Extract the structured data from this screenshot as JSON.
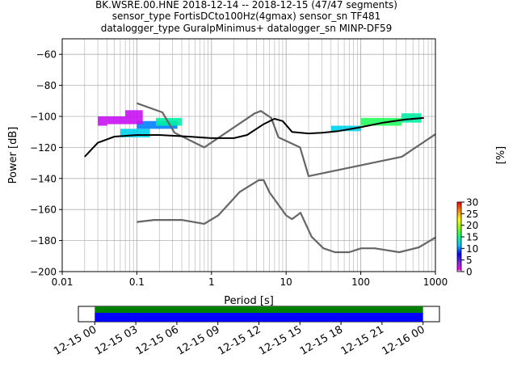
{
  "chart_data": [
    {
      "type": "heatmap",
      "title_lines": [
        "BK.WSRE.00.HNE   2018-12-14 -- 2018-12-15  (47/47 segments)",
        "sensor_type FortisDCto100Hz(4gmax) sensor_sn TF481",
        "datalogger_type GuralpMinimus+ datalogger_sn MINP-DF59"
      ],
      "xlabel": "Period [s]",
      "ylabel": "Power [dB]",
      "xscale": "log",
      "xlim": [
        0.01,
        1000
      ],
      "ylim": [
        -200,
        -50
      ],
      "x_tick_labels": [
        "0.01",
        "0.1",
        "1",
        "10",
        "100",
        "1000"
      ],
      "x_tick_values": [
        0.01,
        0.1,
        1,
        10,
        100,
        1000
      ],
      "y_tick_labels": [
        "−200",
        "−180",
        "−160",
        "−140",
        "−120",
        "−100",
        "−80",
        "−60"
      ],
      "y_tick_values": [
        -200,
        -180,
        -160,
        -140,
        -120,
        -100,
        -80,
        -60
      ],
      "grid": true,
      "colorbar": {
        "label": "[%]",
        "range": [
          0,
          30
        ],
        "tick_values": [
          0,
          5,
          10,
          15,
          20,
          25,
          30
        ],
        "tick_labels": [
          "0",
          "5",
          "10",
          "15",
          "20",
          "25",
          "30"
        ]
      },
      "series": [
        {
          "kind": "noise_model_high",
          "color": "#666666",
          "x": [
            0.1,
            0.22,
            0.32,
            0.8,
            3.8,
            4.6,
            6.3,
            7.9,
            15.4,
            20,
            354.8,
            1000
          ],
          "y": [
            -91.5,
            -97.4,
            -110.5,
            -120,
            -98,
            -96.5,
            -101,
            -113.5,
            -120,
            -138.5,
            -126,
            -111.5
          ]
        },
        {
          "kind": "noise_model_low",
          "color": "#666666",
          "x": [
            0.1,
            0.17,
            0.4,
            0.8,
            1.24,
            2.4,
            4.3,
            5.0,
            6.0,
            10,
            12,
            15.6,
            21.9,
            31.6,
            45,
            70,
            101,
            154,
            328,
            600,
            1000
          ],
          "y": [
            -168,
            -166.7,
            -166.7,
            -169.2,
            -163.7,
            -148.6,
            -141.1,
            -141.1,
            -149,
            -163.8,
            -166.2,
            -162.1,
            -177.5,
            -185,
            -187.5,
            -187.5,
            -185,
            -185,
            -187.5,
            -184.4,
            -178
          ]
        },
        {
          "kind": "mode",
          "color": "#000000",
          "x": [
            0.02,
            0.03,
            0.05,
            0.1,
            0.2,
            0.5,
            1,
            2,
            3,
            5,
            7,
            9,
            12,
            20,
            30,
            50,
            100,
            200,
            400,
            700
          ],
          "y": [
            -126,
            -117,
            -113,
            -112,
            -112,
            -113,
            -114,
            -114,
            -112,
            -105,
            -101.5,
            -103,
            -110,
            -111,
            -110.5,
            -109.5,
            -107,
            -104,
            -102,
            -101
          ]
        }
      ],
      "heatmap_bands": [
        {
          "x": [
            0.06,
            0.15
          ],
          "y": [
            -113.5,
            -108
          ],
          "color_pct": 12
        },
        {
          "x": [
            0.1,
            0.35
          ],
          "y": [
            -108,
            -103
          ],
          "color_pct": 10
        },
        {
          "x": [
            0.18,
            0.4
          ],
          "y": [
            -106,
            -101
          ],
          "color_pct": 14
        },
        {
          "x": [
            0.03,
            0.04
          ],
          "y": [
            -106,
            -100
          ],
          "color_pct": 2
        },
        {
          "x": [
            0.04,
            0.12
          ],
          "y": [
            -105,
            -100
          ],
          "color_pct": 2
        },
        {
          "x": [
            0.07,
            0.12
          ],
          "y": [
            -100,
            -96
          ],
          "color_pct": 2
        },
        {
          "x": [
            40,
            100
          ],
          "y": [
            -109.5,
            -106
          ],
          "color_pct": 12
        },
        {
          "x": [
            100,
            350
          ],
          "y": [
            -106,
            -101
          ],
          "color_pct": 16
        },
        {
          "x": [
            350,
            650
          ],
          "y": [
            -104,
            -98
          ],
          "color_pct": 14
        }
      ]
    },
    {
      "type": "timeline",
      "x_tick_labels": [
        "12-15 00",
        "12-15 03",
        "12-15 06",
        "12-15 09",
        "12-15 12",
        "12-15 15",
        "12-15 18",
        "12-15 21",
        "12-16 00"
      ],
      "x_range_hours": [
        -1.2,
        25.2
      ],
      "bars": [
        {
          "color": "#008000",
          "start_hour": 0,
          "end_hour": 24
        },
        {
          "color": "#0000ff",
          "start_hour": 0,
          "end_hour": 24
        }
      ]
    }
  ]
}
